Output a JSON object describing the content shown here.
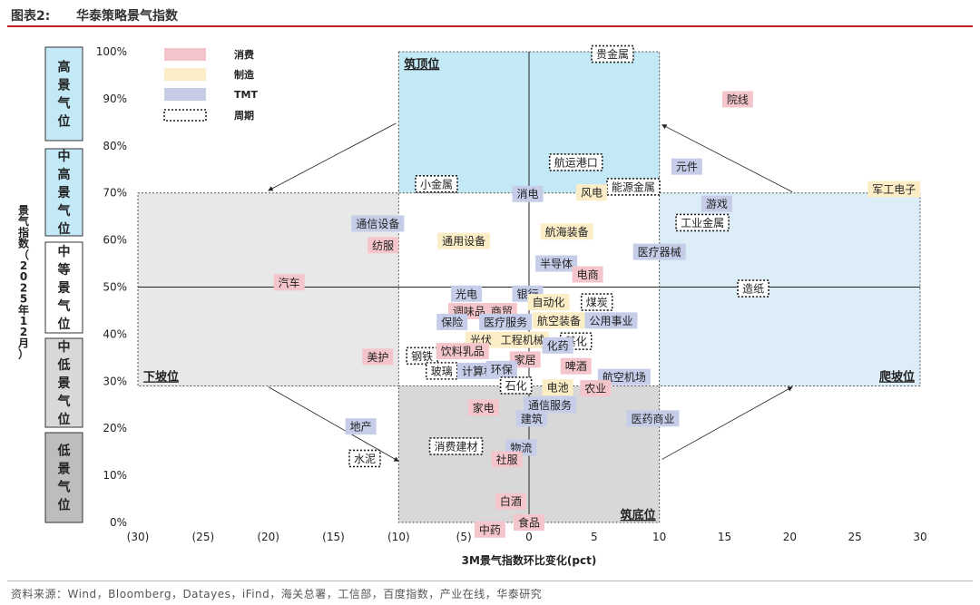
{
  "header": {
    "figure_label": "图表2:",
    "title": "华泰策略景气指数"
  },
  "footer": {
    "source": "资料来源：Wind，Bloomberg，Datayes，iFind，海关总署，工信部，百度指数，产业在线，华泰研究"
  },
  "colors": {
    "consumption": "#f4c5cb",
    "manufacturing": "#fbeec7",
    "tmt": "#c5cde9",
    "cycle_border": "#222222",
    "zone_top": "#c3e8f6",
    "zone_side": "#e8e8e8",
    "zone_bottom": "#d8d8d8",
    "zone_right": "#dcedf8"
  },
  "chart_data": {
    "type": "scatter",
    "xlabel": "3M景气指数环比变化(pct)",
    "ylabel": "景气指数（2025年12月）",
    "xlim": [
      -30,
      30
    ],
    "ylim": [
      0,
      100
    ],
    "xticks": [
      -30,
      -25,
      -20,
      -15,
      -10,
      -5,
      0,
      5,
      10,
      15,
      20,
      25,
      30
    ],
    "xtick_labels": [
      "(30)",
      "(25)",
      "(20)",
      "(15)",
      "(10)",
      "(5)",
      "0",
      "5",
      "10",
      "15",
      "20",
      "25",
      "30"
    ],
    "yticks": [
      0,
      10,
      20,
      30,
      40,
      50,
      60,
      70,
      80,
      90,
      100
    ],
    "ytick_labels": [
      "0%",
      "10%",
      "20%",
      "30%",
      "40%",
      "50%",
      "60%",
      "70%",
      "80%",
      "90%",
      "100%"
    ],
    "legend_position": "top-left",
    "legend": [
      {
        "key": "consumption",
        "label": "消费"
      },
      {
        "key": "manufacturing",
        "label": "制造"
      },
      {
        "key": "tmt",
        "label": "TMT"
      },
      {
        "key": "cycle",
        "label": "周期"
      }
    ],
    "categories_bands": [
      {
        "label": "高景气位",
        "range": [
          80,
          100
        ],
        "fill": "#c3e8f6"
      },
      {
        "label": "中高景气位",
        "range": [
          60,
          80
        ],
        "fill": "#c3e8f6"
      },
      {
        "label": "中等景气位",
        "range": [
          40,
          60
        ],
        "fill": "#ffffff"
      },
      {
        "label": "中低景气位",
        "range": [
          20,
          40
        ],
        "fill": "#d8d8d8"
      },
      {
        "label": "低景气位",
        "range": [
          0,
          20
        ],
        "fill": "#bdbdbd"
      }
    ],
    "zones": [
      {
        "label": "筑顶位",
        "x": [
          -10,
          10
        ],
        "y": [
          70,
          100
        ],
        "fill": "#c3e8f6"
      },
      {
        "label": "下坡位",
        "x": [
          -30,
          -10
        ],
        "y": [
          29,
          70
        ],
        "fill": "#e8e8e8"
      },
      {
        "label": "爬坡位",
        "x": [
          10,
          30
        ],
        "y": [
          29,
          70
        ],
        "fill": "#dcedf8"
      },
      {
        "label": "筑底位",
        "x": [
          -10,
          10
        ],
        "y": [
          0,
          29
        ],
        "fill": "#d8d8d8"
      }
    ],
    "points": [
      {
        "name": "贵金属",
        "x": 6.4,
        "y": 99.5,
        "group": "cycle"
      },
      {
        "name": "院线",
        "x": 16.0,
        "y": 89.9,
        "group": "consumption"
      },
      {
        "name": "航运港口",
        "x": 3.6,
        "y": 76.5,
        "group": "cycle"
      },
      {
        "name": "元件",
        "x": 12.1,
        "y": 75.6,
        "group": "tmt"
      },
      {
        "name": "小金属",
        "x": -7.1,
        "y": 71.9,
        "group": "cycle"
      },
      {
        "name": "能源金属",
        "x": 8.0,
        "y": 71.3,
        "group": "cycle"
      },
      {
        "name": "风电",
        "x": 4.8,
        "y": 70.1,
        "group": "manufacturing"
      },
      {
        "name": "消电",
        "x": -0.1,
        "y": 69.8,
        "group": "tmt"
      },
      {
        "name": "军工电子",
        "x": 28.0,
        "y": 70.8,
        "group": "manufacturing"
      },
      {
        "name": "游戏",
        "x": 14.4,
        "y": 67.7,
        "group": "tmt"
      },
      {
        "name": "通信设备",
        "x": -11.6,
        "y": 63.5,
        "group": "tmt"
      },
      {
        "name": "工业金属",
        "x": 13.3,
        "y": 63.7,
        "group": "cycle"
      },
      {
        "name": "航海装备",
        "x": 2.9,
        "y": 61.8,
        "group": "manufacturing"
      },
      {
        "name": "通用设备",
        "x": -5.0,
        "y": 59.8,
        "group": "manufacturing"
      },
      {
        "name": "纺服",
        "x": -11.2,
        "y": 58.9,
        "group": "consumption"
      },
      {
        "name": "医疗器械",
        "x": 10.0,
        "y": 57.5,
        "group": "tmt"
      },
      {
        "name": "半导体",
        "x": 2.1,
        "y": 55.0,
        "group": "tmt"
      },
      {
        "name": "电商",
        "x": 4.5,
        "y": 52.7,
        "group": "consumption"
      },
      {
        "name": "汽车",
        "x": -18.4,
        "y": 51.0,
        "group": "consumption"
      },
      {
        "name": "造纸",
        "x": 17.2,
        "y": 49.7,
        "group": "cycle"
      },
      {
        "name": "光电",
        "x": -4.8,
        "y": 48.6,
        "group": "tmt"
      },
      {
        "name": "银行",
        "x": -0.1,
        "y": 48.6,
        "group": "tmt"
      },
      {
        "name": "煤炭",
        "x": 5.2,
        "y": 46.8,
        "group": "cycle"
      },
      {
        "name": "自动化",
        "x": 1.5,
        "y": 46.8,
        "group": "manufacturing"
      },
      {
        "name": "调味品",
        "x": -4.6,
        "y": 44.9,
        "group": "consumption"
      },
      {
        "name": "商贸",
        "x": -2.1,
        "y": 44.9,
        "group": "consumption"
      },
      {
        "name": "保险",
        "x": -5.9,
        "y": 42.6,
        "group": "tmt"
      },
      {
        "name": "医疗服务",
        "x": -1.8,
        "y": 42.6,
        "group": "tmt"
      },
      {
        "name": "航空装备",
        "x": 2.3,
        "y": 42.9,
        "group": "manufacturing"
      },
      {
        "name": "公用事业",
        "x": 6.3,
        "y": 42.9,
        "group": "tmt"
      },
      {
        "name": "光伏",
        "x": -3.7,
        "y": 38.8,
        "group": "manufacturing"
      },
      {
        "name": "工程机械",
        "x": -0.5,
        "y": 38.8,
        "group": "manufacturing"
      },
      {
        "name": "基化",
        "x": 3.6,
        "y": 38.5,
        "group": "cycle"
      },
      {
        "name": "化药",
        "x": 2.2,
        "y": 37.6,
        "group": "tmt"
      },
      {
        "name": "美护",
        "x": -11.6,
        "y": 35.2,
        "group": "consumption"
      },
      {
        "name": "钢铁",
        "x": -8.2,
        "y": 35.4,
        "group": "cycle"
      },
      {
        "name": "饮料乳品",
        "x": -5.1,
        "y": 36.4,
        "group": "consumption"
      },
      {
        "name": "家居",
        "x": -0.3,
        "y": 34.6,
        "group": "consumption"
      },
      {
        "name": "啤酒",
        "x": 3.6,
        "y": 33.2,
        "group": "consumption"
      },
      {
        "name": "玻璃",
        "x": -6.7,
        "y": 32.2,
        "group": "cycle"
      },
      {
        "name": "计算机",
        "x": -3.9,
        "y": 32.2,
        "group": "tmt"
      },
      {
        "name": "环保",
        "x": -2.1,
        "y": 32.6,
        "group": "tmt"
      },
      {
        "name": "航空机场",
        "x": 7.3,
        "y": 30.9,
        "group": "tmt"
      },
      {
        "name": "石化",
        "x": -1.0,
        "y": 29.1,
        "group": "cycle"
      },
      {
        "name": "电池",
        "x": 2.2,
        "y": 28.7,
        "group": "manufacturing"
      },
      {
        "name": "农业",
        "x": 5.1,
        "y": 28.5,
        "group": "consumption"
      },
      {
        "name": "家电",
        "x": -3.5,
        "y": 24.4,
        "group": "consumption"
      },
      {
        "name": "通信服务",
        "x": 1.6,
        "y": 25.0,
        "group": "tmt"
      },
      {
        "name": "建筑",
        "x": 0.2,
        "y": 22.1,
        "group": "tmt"
      },
      {
        "name": "医药商业",
        "x": 9.5,
        "y": 22.1,
        "group": "tmt"
      },
      {
        "name": "地产",
        "x": -12.9,
        "y": 20.4,
        "group": "tmt"
      },
      {
        "name": "消费建材",
        "x": -5.6,
        "y": 16.2,
        "group": "cycle"
      },
      {
        "name": "物流",
        "x": -0.6,
        "y": 15.9,
        "group": "tmt"
      },
      {
        "name": "水泥",
        "x": -12.6,
        "y": 13.6,
        "group": "cycle"
      },
      {
        "name": "社服",
        "x": -1.7,
        "y": 13.4,
        "group": "consumption"
      },
      {
        "name": "白酒",
        "x": -1.4,
        "y": 4.5,
        "group": "consumption"
      },
      {
        "name": "食品",
        "x": 0.0,
        "y": 0.0,
        "group": "consumption"
      },
      {
        "name": "中药",
        "x": -3.0,
        "y": -1.5,
        "group": "consumption"
      }
    ]
  }
}
